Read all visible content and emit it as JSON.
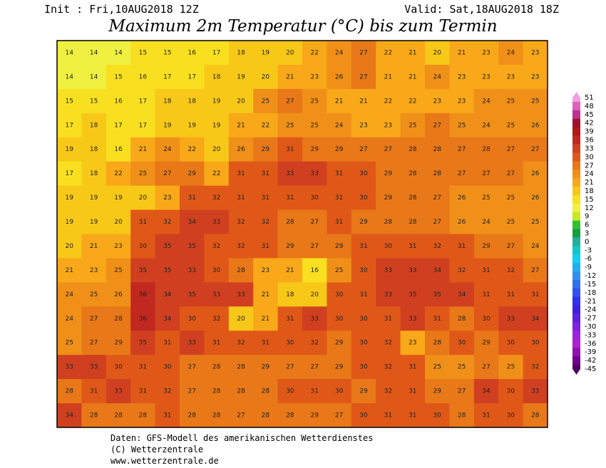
{
  "header": {
    "init": "Init : Fri,10AUG2018 12Z",
    "valid": "Valid: Sat,18AUG2018 18Z",
    "title": "Maximum 2m Temperatur (°C) bis zum Termin"
  },
  "map": {
    "rows": [
      [
        14,
        14,
        14,
        15,
        15,
        16,
        17,
        18,
        19,
        20,
        22,
        24,
        27,
        22,
        21,
        20,
        21,
        23,
        24,
        23
      ],
      [
        14,
        14,
        15,
        16,
        17,
        17,
        18,
        19,
        20,
        21,
        23,
        26,
        27,
        21,
        21,
        24,
        23,
        23,
        23,
        23
      ],
      [
        15,
        15,
        16,
        17,
        18,
        18,
        19,
        20,
        25,
        27,
        25,
        21,
        21,
        22,
        22,
        23,
        23,
        24,
        25,
        25
      ],
      [
        17,
        18,
        17,
        17,
        19,
        19,
        19,
        21,
        22,
        25,
        25,
        24,
        23,
        23,
        25,
        27,
        25,
        24,
        25,
        26
      ],
      [
        19,
        18,
        16,
        21,
        24,
        22,
        20,
        26,
        29,
        31,
        29,
        29,
        27,
        27,
        28,
        28,
        27,
        28,
        27,
        27
      ],
      [
        17,
        18,
        22,
        25,
        27,
        29,
        22,
        31,
        31,
        33,
        33,
        31,
        30,
        29,
        28,
        28,
        27,
        27,
        27,
        26
      ],
      [
        19,
        19,
        19,
        20,
        23,
        31,
        32,
        31,
        31,
        31,
        30,
        31,
        30,
        29,
        28,
        27,
        26,
        25,
        25,
        26
      ],
      [
        19,
        19,
        20,
        31,
        32,
        34,
        33,
        32,
        32,
        28,
        27,
        31,
        29,
        28,
        28,
        27,
        26,
        24,
        25,
        25
      ],
      [
        20,
        21,
        23,
        30,
        35,
        35,
        32,
        32,
        31,
        29,
        27,
        29,
        31,
        30,
        31,
        32,
        31,
        29,
        27,
        24
      ],
      [
        21,
        23,
        25,
        35,
        35,
        33,
        30,
        28,
        23,
        21,
        16,
        25,
        30,
        33,
        33,
        34,
        32,
        31,
        32,
        27
      ],
      [
        24,
        25,
        26,
        36,
        34,
        35,
        33,
        33,
        21,
        18,
        20,
        30,
        31,
        33,
        35,
        35,
        34,
        31,
        31,
        31
      ],
      [
        24,
        27,
        28,
        36,
        34,
        30,
        32,
        20,
        21,
        31,
        33,
        30,
        30,
        31,
        33,
        31,
        28,
        30,
        33,
        34
      ],
      [
        25,
        27,
        29,
        35,
        31,
        33,
        31,
        32,
        31,
        30,
        32,
        29,
        30,
        32,
        23,
        28,
        30,
        29,
        30,
        30
      ],
      [
        33,
        33,
        30,
        31,
        30,
        27,
        28,
        28,
        29,
        27,
        27,
        29,
        30,
        32,
        31,
        25,
        25,
        27,
        25,
        32
      ],
      [
        28,
        31,
        33,
        31,
        32,
        27,
        28,
        28,
        28,
        30,
        31,
        30,
        29,
        32,
        31,
        29,
        27,
        34,
        30,
        33
      ],
      [
        34,
        28,
        28,
        28,
        31,
        28,
        28,
        27,
        28,
        28,
        29,
        27,
        30,
        31,
        31,
        30,
        28,
        31,
        30,
        28
      ]
    ]
  },
  "legend": {
    "levels": [
      51,
      48,
      45,
      42,
      39,
      36,
      33,
      30,
      27,
      24,
      21,
      18,
      15,
      12,
      9,
      6,
      3,
      0,
      -3,
      -6,
      -9,
      -12,
      -15,
      -18,
      -21,
      -24,
      -27,
      -30,
      -33,
      -36,
      -39,
      -42,
      -45
    ],
    "colors": [
      "#f0a0e0",
      "#e060c0",
      "#c03090",
      "#a01030",
      "#b01818",
      "#c02820",
      "#d04020",
      "#e05818",
      "#e87818",
      "#f09018",
      "#f8a818",
      "#f8c818",
      "#f8e020",
      "#f0f040",
      "#c8e820",
      "#30c030",
      "#10a040",
      "#20b0a0",
      "#10c8c8",
      "#10d0f0",
      "#20b0f0",
      "#3090f0",
      "#3070f0",
      "#3050f0",
      "#3030f0",
      "#4020e0",
      "#6020e0",
      "#8020e0",
      "#a020e0",
      "#b020d0",
      "#9010b0",
      "#700090",
      "#500060"
    ]
  },
  "footer": {
    "line1": "Daten: GFS-Modell des amerikanischen Wetterdienstes",
    "line2": "(C) Wetterzentrale",
    "line3": "www.wetterzentrale.de"
  }
}
